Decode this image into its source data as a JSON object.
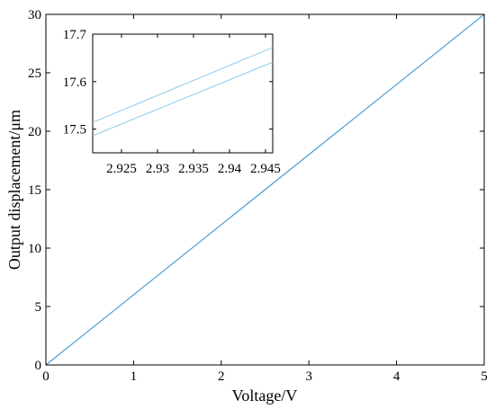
{
  "chart_data": [
    {
      "type": "line",
      "xlabel": "Voltage/V",
      "ylabel": "Output displacement/μm",
      "xlim": [
        0,
        5
      ],
      "ylim": [
        0,
        30
      ],
      "xticks": [
        0,
        1,
        2,
        3,
        4,
        5
      ],
      "yticks": [
        0,
        5,
        10,
        15,
        20,
        25,
        30
      ],
      "grid": false,
      "colors": {
        "line": "#4a9fd8",
        "axis": "#000000"
      },
      "series": [
        {
          "x": [
            0,
            5
          ],
          "y": [
            0,
            30
          ]
        }
      ]
    },
    {
      "type": "line",
      "role": "inset",
      "xlim": [
        2.921,
        2.946
      ],
      "ylim": [
        17.45,
        17.7
      ],
      "xticks": [
        "2.925",
        "2.93",
        "2.935",
        "2.94",
        "2.945"
      ],
      "yticks": [
        "17.5",
        "17.6",
        "17.7"
      ],
      "grid": false,
      "colors": {
        "line": "#8ecbea",
        "axis": "#000000"
      },
      "series": [
        {
          "x": [
            2.921,
            2.946
          ],
          "y": [
            17.514,
            17.672
          ]
        },
        {
          "x": [
            2.921,
            2.946
          ],
          "y": [
            17.486,
            17.641
          ]
        }
      ]
    }
  ]
}
